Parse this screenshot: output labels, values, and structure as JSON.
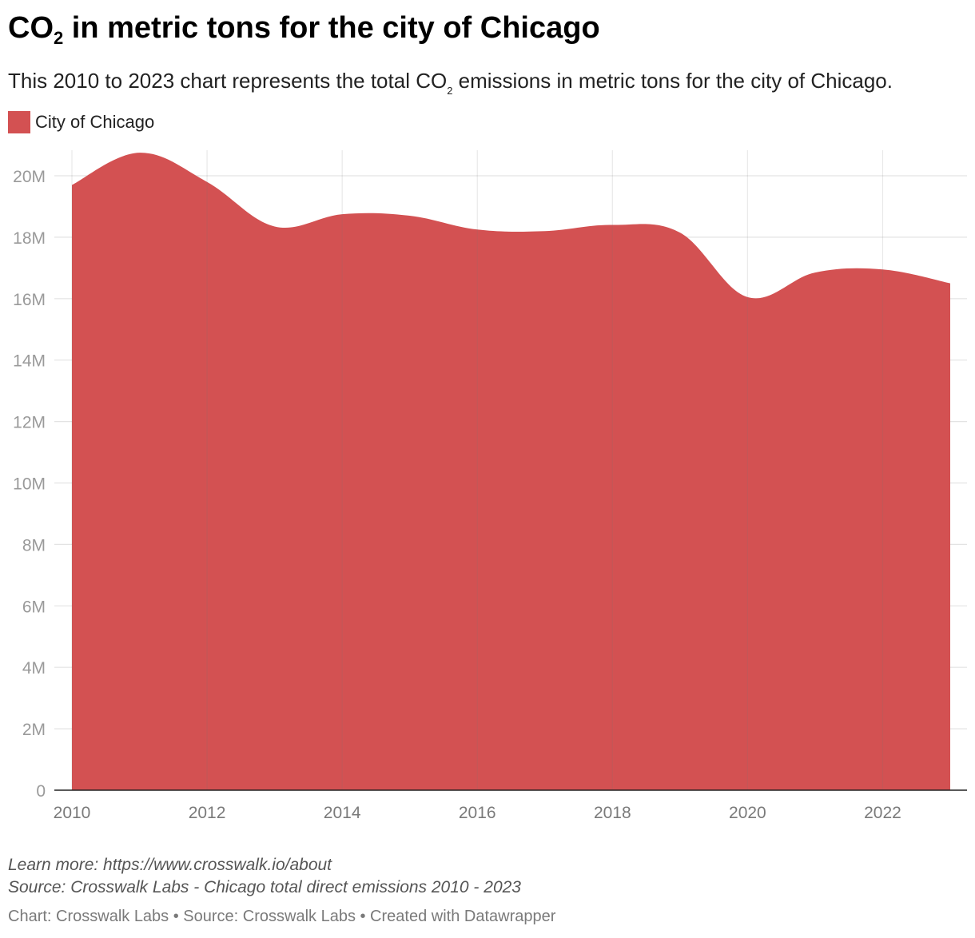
{
  "header": {
    "title_prefix": "CO",
    "title_sub": "2",
    "title_suffix": " in metric tons for the city of Chicago",
    "subtitle_prefix": "This 2010 to 2023 chart represents the total CO",
    "subtitle_sub": "2",
    "subtitle_suffix": " emissions in metric tons for the city of Chicago."
  },
  "legend": {
    "label": "City of Chicago",
    "color": "#d35152"
  },
  "chart_data": {
    "type": "area",
    "series": [
      {
        "name": "City of Chicago",
        "color": "#d35152",
        "x": [
          2010,
          2011,
          2012,
          2013,
          2014,
          2015,
          2016,
          2017,
          2018,
          2019,
          2020,
          2021,
          2022,
          2023
        ],
        "values": [
          19700000,
          20750000,
          19800000,
          18350000,
          18750000,
          18700000,
          18250000,
          18200000,
          18400000,
          18150000,
          16050000,
          16850000,
          16950000,
          16500000
        ]
      }
    ],
    "x_ticks": [
      2010,
      2012,
      2014,
      2016,
      2018,
      2020,
      2022
    ],
    "x_tick_labels": [
      "2010",
      "2012",
      "2014",
      "2016",
      "2018",
      "2020",
      "2022"
    ],
    "y_ticks": [
      0,
      2000000,
      4000000,
      6000000,
      8000000,
      10000000,
      12000000,
      14000000,
      16000000,
      18000000,
      20000000
    ],
    "y_tick_labels": [
      "0",
      "2M",
      "4M",
      "6M",
      "8M",
      "10M",
      "12M",
      "14M",
      "16M",
      "18M",
      "20M"
    ],
    "xlim": [
      2010,
      2023
    ],
    "ylim": [
      0,
      20000000
    ],
    "grid": true
  },
  "footer": {
    "note_line1": "Learn more: https://www.crosswalk.io/about",
    "note_line2": "Source: Crosswalk Labs - Chicago total direct emissions 2010 - 2023",
    "credit": "Chart: Crosswalk Labs • Source: Crosswalk Labs • Created with Datawrapper"
  }
}
